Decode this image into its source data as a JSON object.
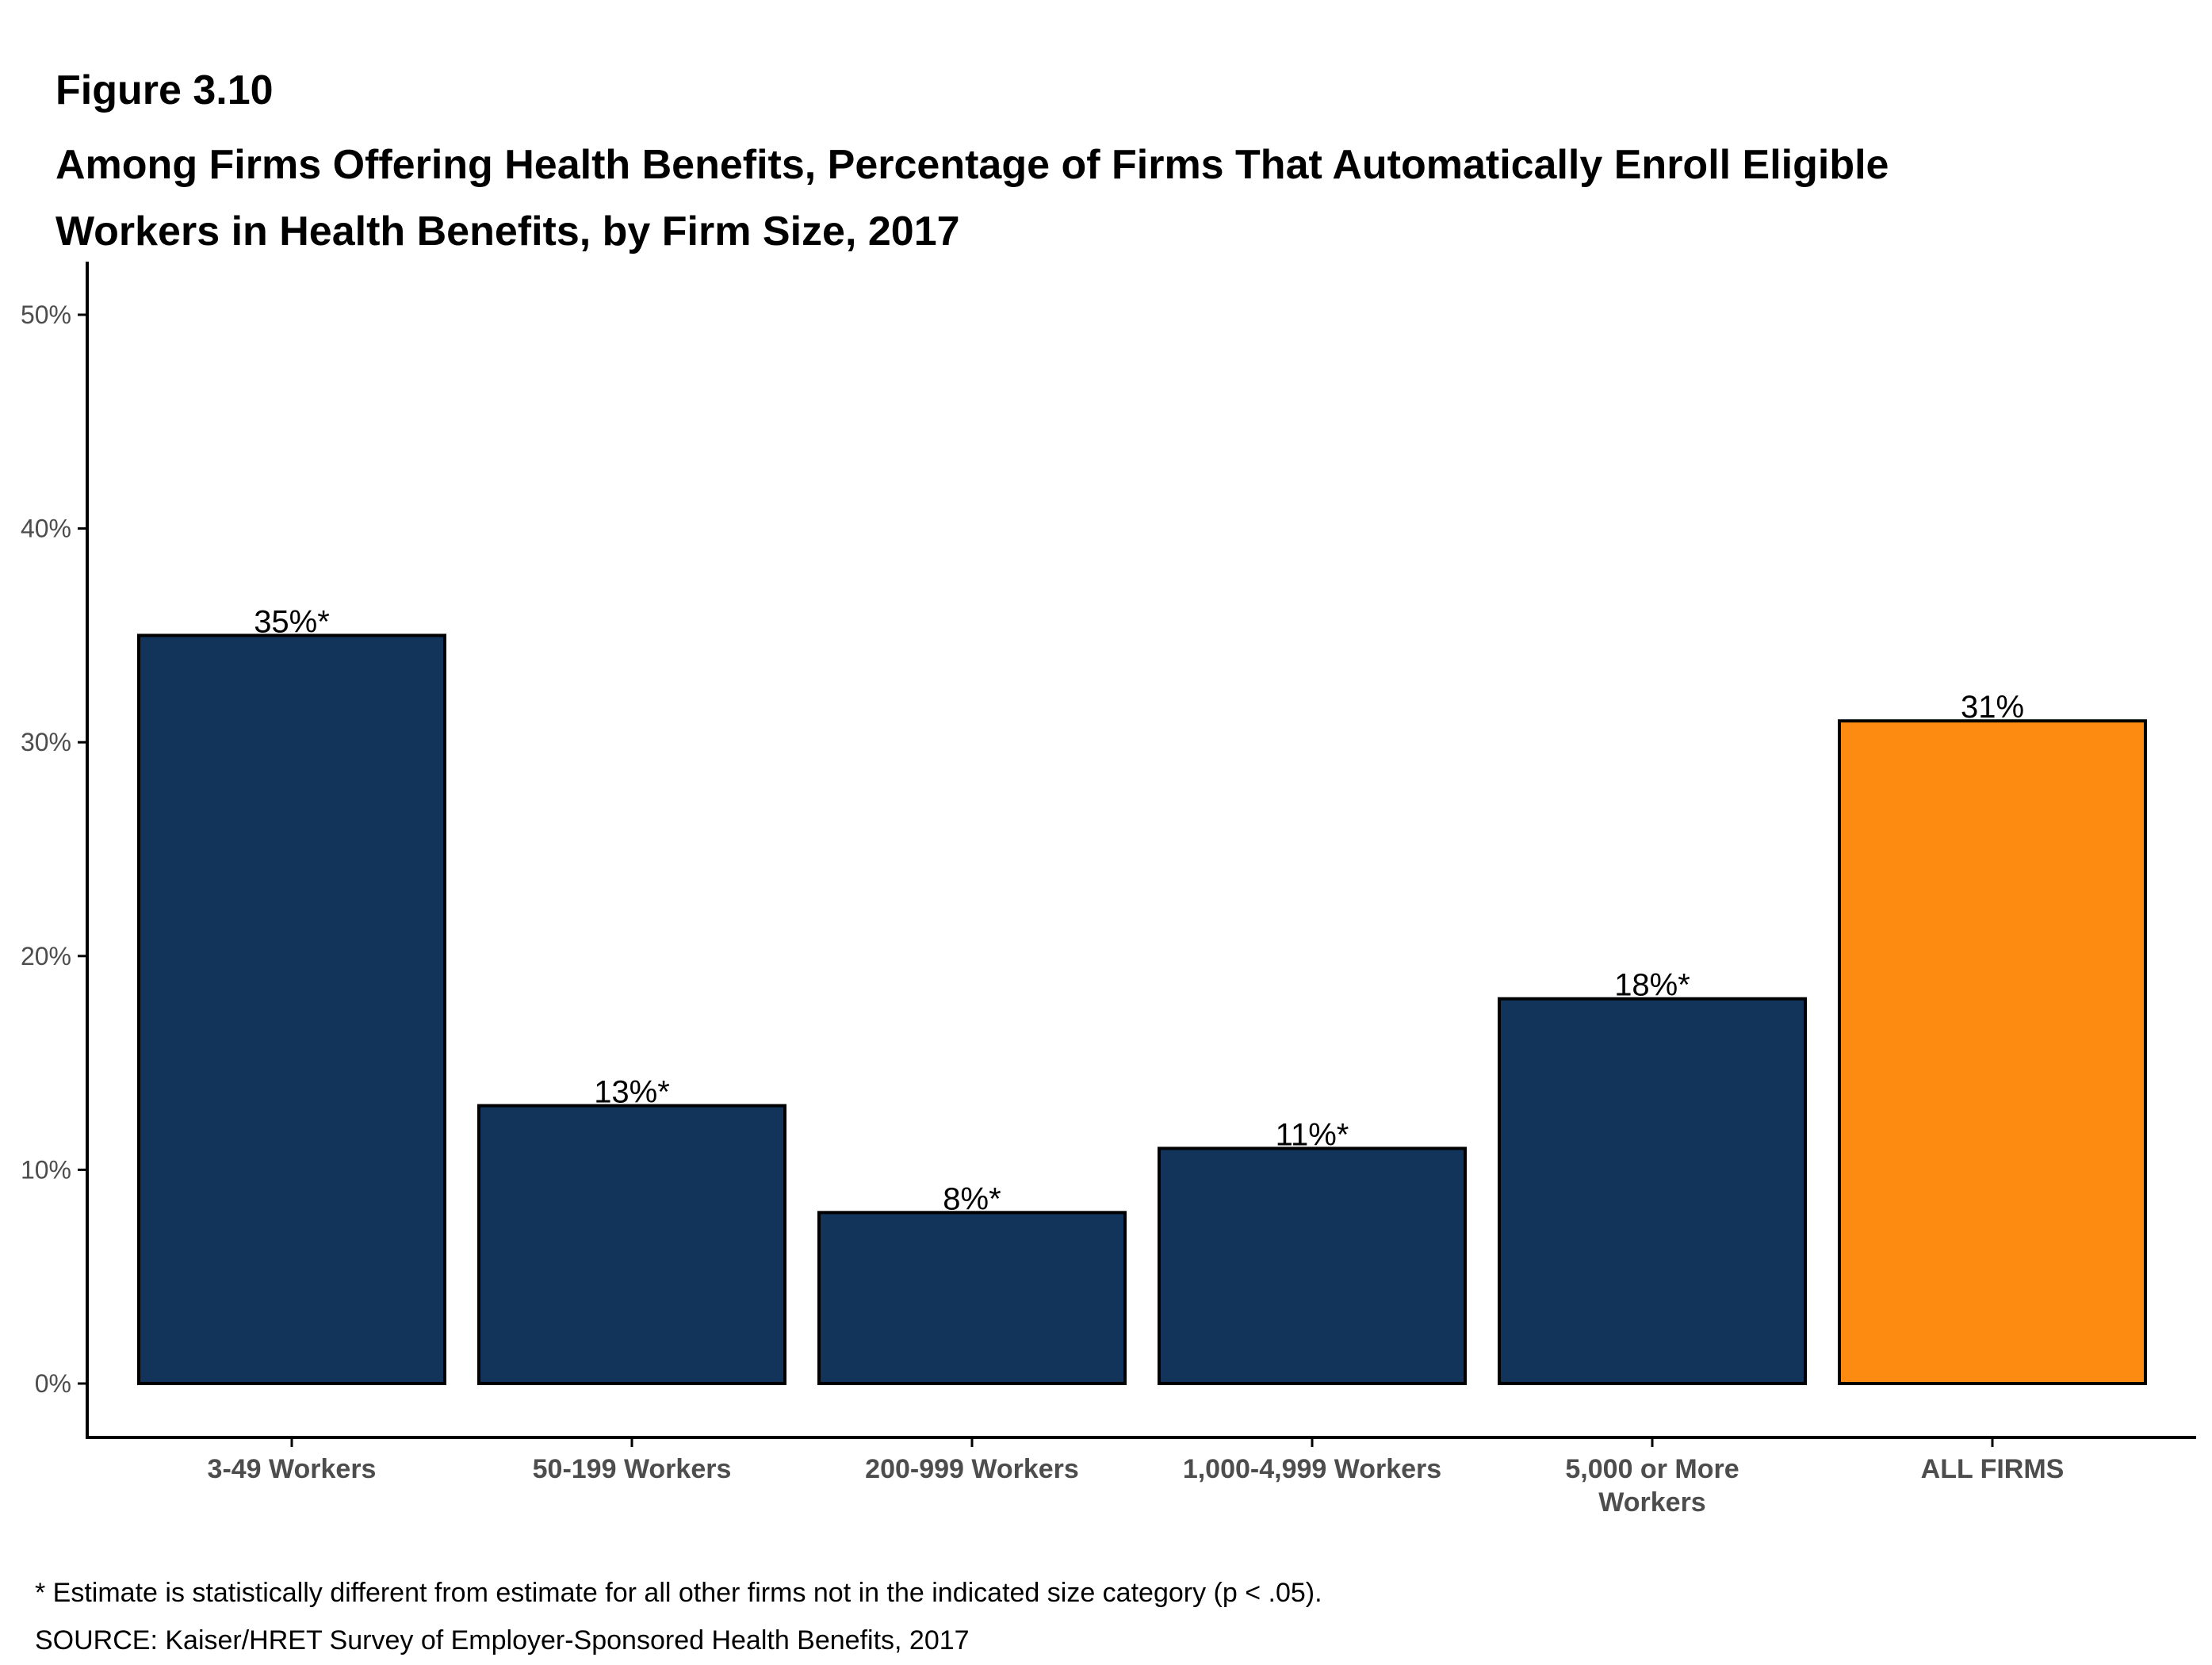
{
  "figure": {
    "number": "Figure 3.10",
    "title": "Among Firms Offering Health Benefits, Percentage of Firms That Automatically Enroll Eligible Workers in Health Benefits, by Firm Size, 2017"
  },
  "chart_data": {
    "type": "bar",
    "categories": [
      "3-49 Workers",
      "50-199 Workers",
      "200-999 Workers",
      "1,000-4,999 Workers",
      "5,000 or More Workers",
      "ALL FIRMS"
    ],
    "category_lines": [
      [
        "3-49 Workers"
      ],
      [
        "50-199 Workers"
      ],
      [
        "200-999 Workers"
      ],
      [
        "1,000-4,999 Workers"
      ],
      [
        "5,000 or More",
        "Workers"
      ],
      [
        "ALL FIRMS"
      ]
    ],
    "values": [
      35,
      13,
      8,
      11,
      18,
      31
    ],
    "data_labels": [
      "35%*",
      "13%*",
      "8%*",
      "11%*",
      "18%*",
      "31%"
    ],
    "bar_colors": [
      "#12345a",
      "#12345a",
      "#12345a",
      "#12345a",
      "#12345a",
      "#fd8b12"
    ],
    "ylim": [
      0,
      50
    ],
    "yticks": [
      0,
      10,
      20,
      30,
      40,
      50
    ],
    "ytick_labels": [
      "0%",
      "10%",
      "20%",
      "30%",
      "40%",
      "50%"
    ],
    "xlabel": "",
    "ylabel": "",
    "grid": false,
    "legend": "none"
  },
  "notes": {
    "footnote": "* Estimate is statistically different from estimate for all other firms not in the indicated size category (p < .05).",
    "source": "SOURCE: Kaiser/HRET Survey of Employer-Sponsored Health Benefits, 2017"
  }
}
